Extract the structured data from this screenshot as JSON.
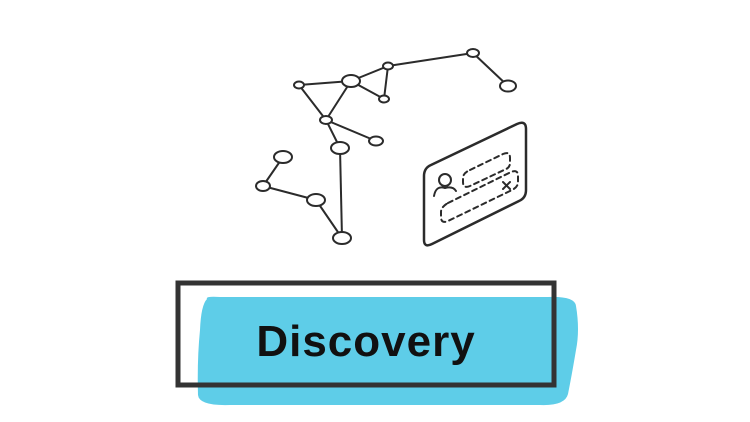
{
  "banner": {
    "label": "Discovery"
  },
  "colors": {
    "ink": "#2b2b2b",
    "highlight": "#5ecde8",
    "background": "#ffffff"
  },
  "icons": {
    "network": "network-graph-icon",
    "card": "identity-card-icon"
  }
}
